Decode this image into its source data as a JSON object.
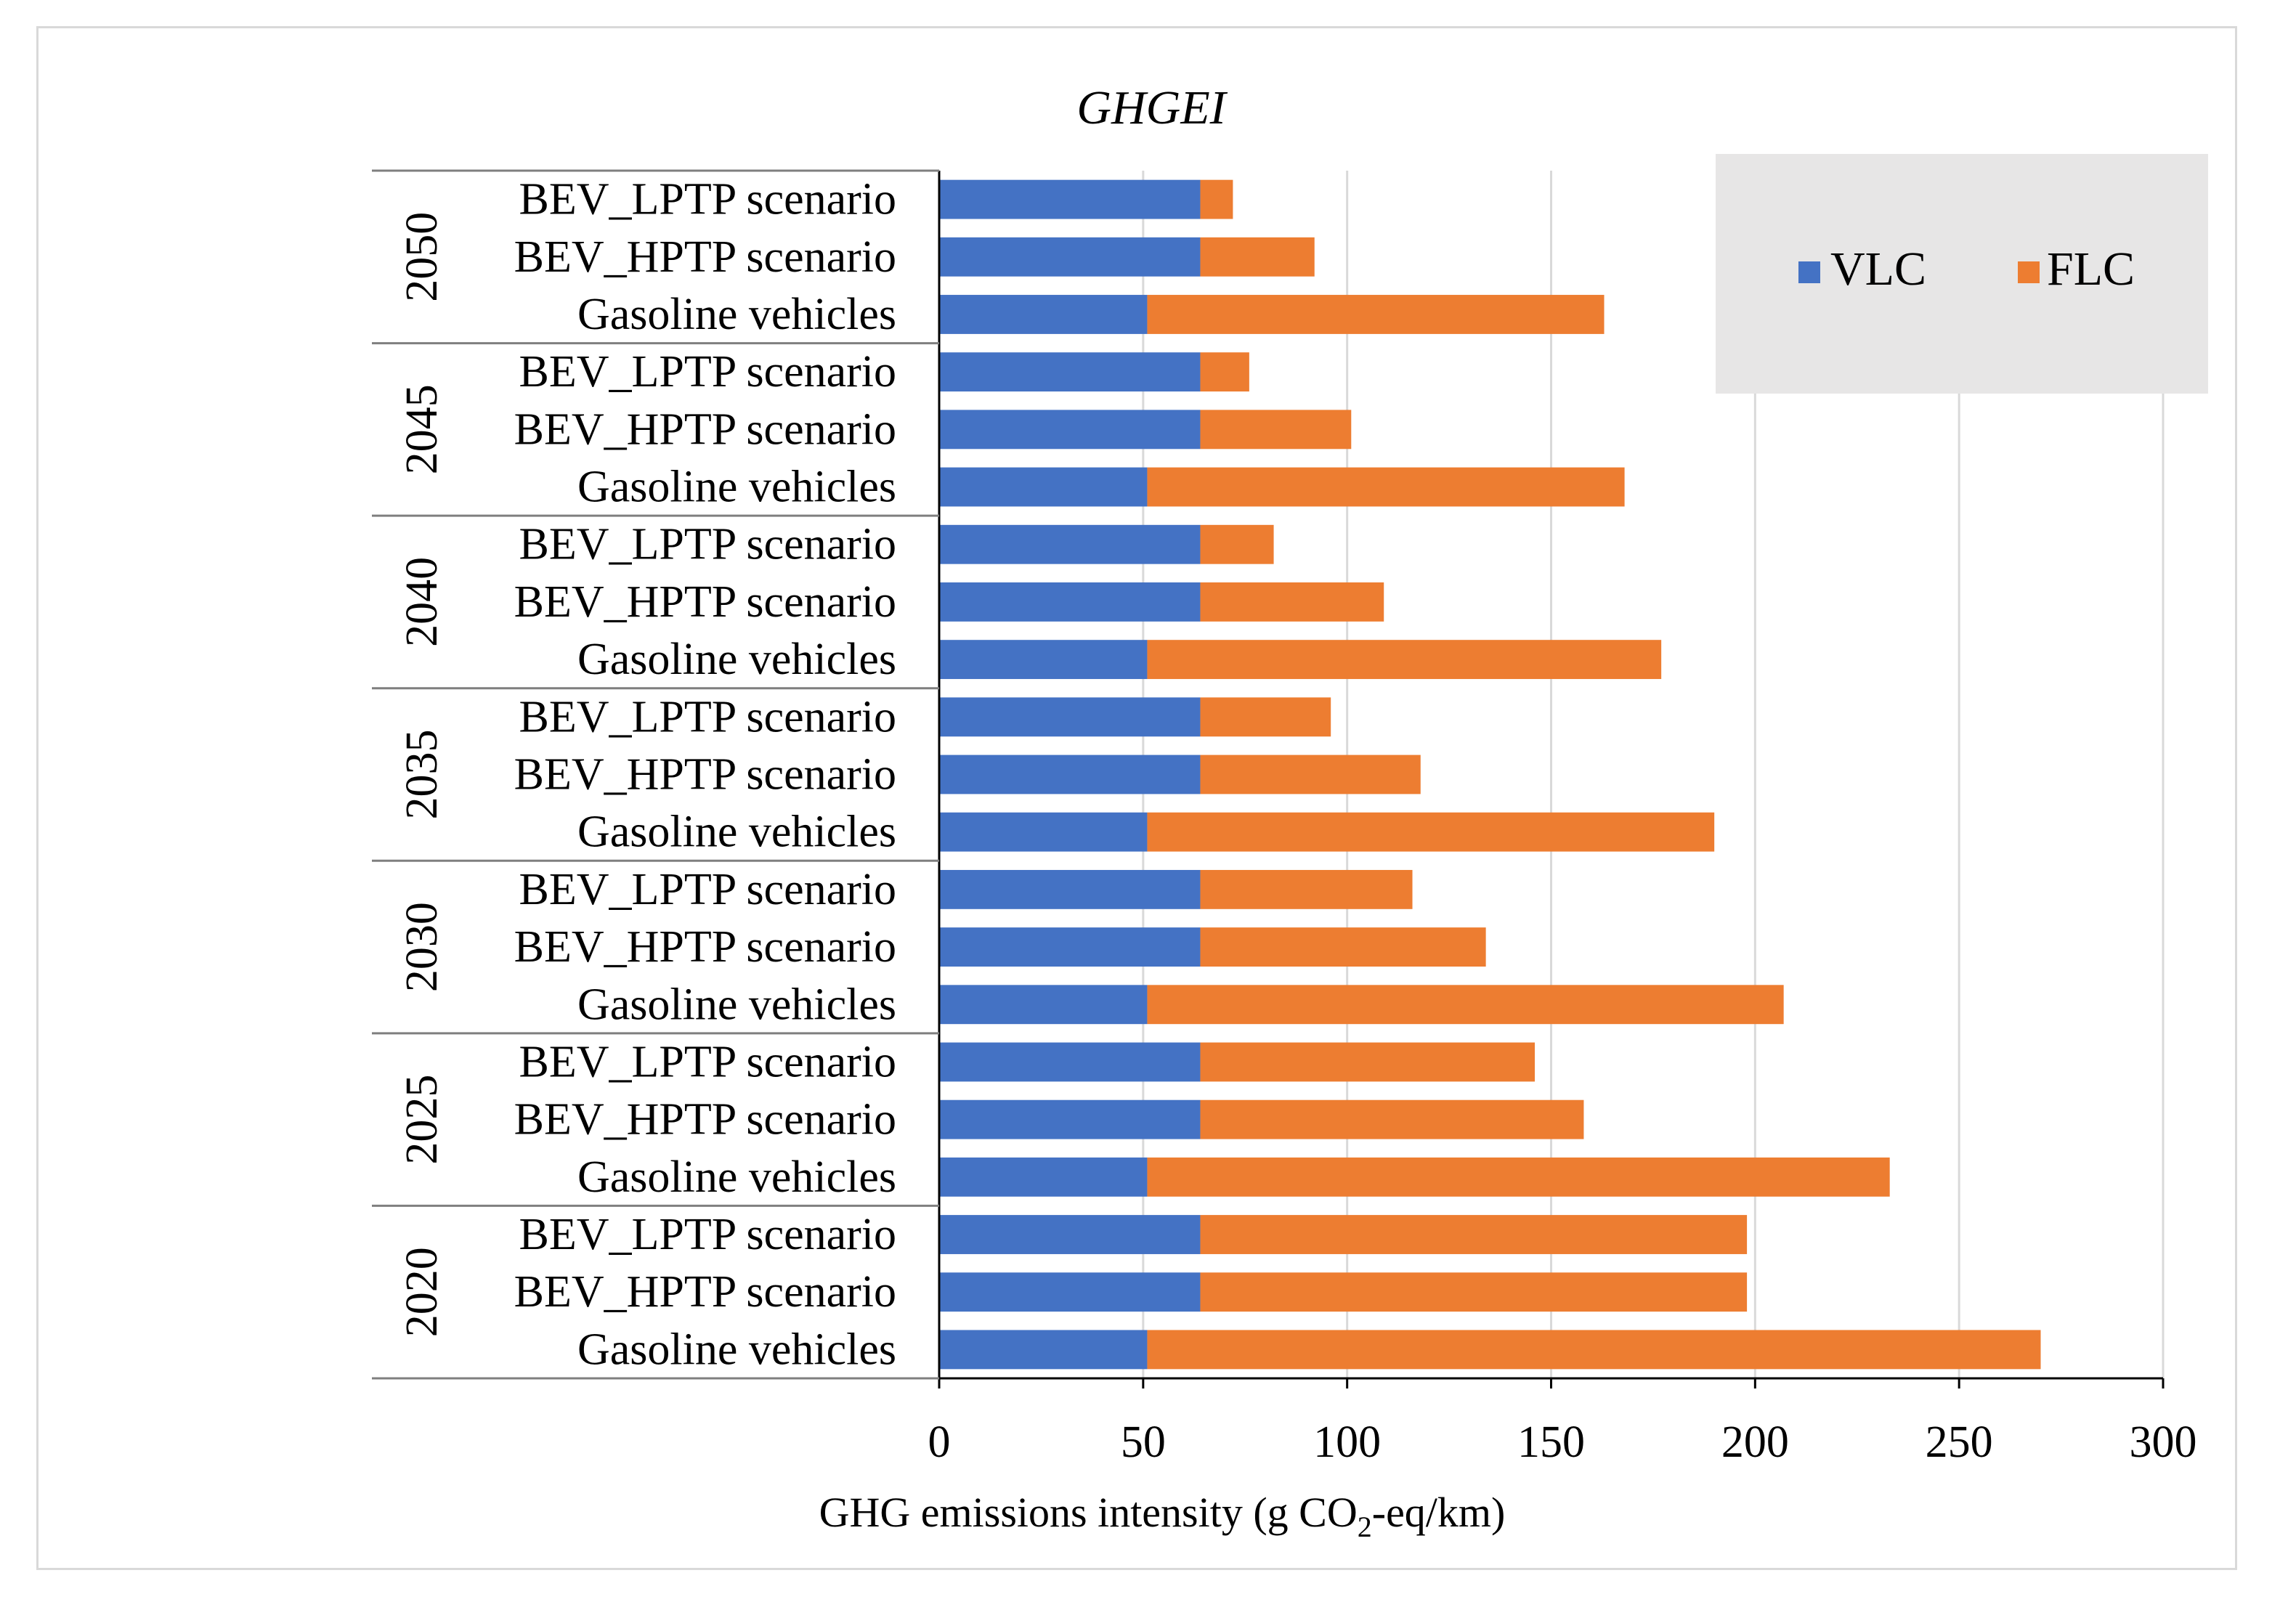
{
  "chart_data": {
    "type": "bar",
    "stacked": true,
    "orientation": "horizontal",
    "title": "GHGEI",
    "xlabel": {
      "prefix": "GHG emissions intensity  (g CO",
      "subscript": "2",
      "suffix": "-eq/km)"
    },
    "xlim": [
      0,
      300
    ],
    "xticks": [
      "0",
      "50",
      "100",
      "150",
      "200",
      "250",
      "300"
    ],
    "legend": {
      "position": "top-right",
      "labels": [
        "VLC",
        "FLC"
      ]
    },
    "colors": {
      "VLC": "#4472c4",
      "FLC": "#ed7d31"
    },
    "series_names": [
      "VLC",
      "FLC"
    ],
    "groups": [
      {
        "year": "2050",
        "bars": [
          {
            "label": "BEV_LPTP scenario",
            "VLC": 64,
            "FLC": 8
          },
          {
            "label": "BEV_HPTP scenario",
            "VLC": 64,
            "FLC": 28
          },
          {
            "label": "Gasoline vehicles",
            "VLC": 51,
            "FLC": 112
          }
        ]
      },
      {
        "year": "2045",
        "bars": [
          {
            "label": "BEV_LPTP scenario",
            "VLC": 64,
            "FLC": 12
          },
          {
            "label": "BEV_HPTP scenario",
            "VLC": 64,
            "FLC": 37
          },
          {
            "label": "Gasoline vehicles",
            "VLC": 51,
            "FLC": 117
          }
        ]
      },
      {
        "year": "2040",
        "bars": [
          {
            "label": "BEV_LPTP scenario",
            "VLC": 64,
            "FLC": 18
          },
          {
            "label": "BEV_HPTP scenario",
            "VLC": 64,
            "FLC": 45
          },
          {
            "label": "Gasoline vehicles",
            "VLC": 51,
            "FLC": 126
          }
        ]
      },
      {
        "year": "2035",
        "bars": [
          {
            "label": "BEV_LPTP scenario",
            "VLC": 64,
            "FLC": 32
          },
          {
            "label": "BEV_HPTP scenario",
            "VLC": 64,
            "FLC": 54
          },
          {
            "label": "Gasoline vehicles",
            "VLC": 51,
            "FLC": 139
          }
        ]
      },
      {
        "year": "2030",
        "bars": [
          {
            "label": "BEV_LPTP scenario",
            "VLC": 64,
            "FLC": 52
          },
          {
            "label": "BEV_HPTP scenario",
            "VLC": 64,
            "FLC": 70
          },
          {
            "label": "Gasoline vehicles",
            "VLC": 51,
            "FLC": 156
          }
        ]
      },
      {
        "year": "2025",
        "bars": [
          {
            "label": "BEV_LPTP scenario",
            "VLC": 64,
            "FLC": 82
          },
          {
            "label": "BEV_HPTP scenario",
            "VLC": 64,
            "FLC": 94
          },
          {
            "label": "Gasoline vehicles",
            "VLC": 51,
            "FLC": 182
          }
        ]
      },
      {
        "year": "2020",
        "bars": [
          {
            "label": "BEV_LPTP scenario",
            "VLC": 64,
            "FLC": 134
          },
          {
            "label": "BEV_HPTP scenario",
            "VLC": 64,
            "FLC": 134
          },
          {
            "label": "Gasoline vehicles",
            "VLC": 51,
            "FLC": 219
          }
        ]
      }
    ]
  }
}
